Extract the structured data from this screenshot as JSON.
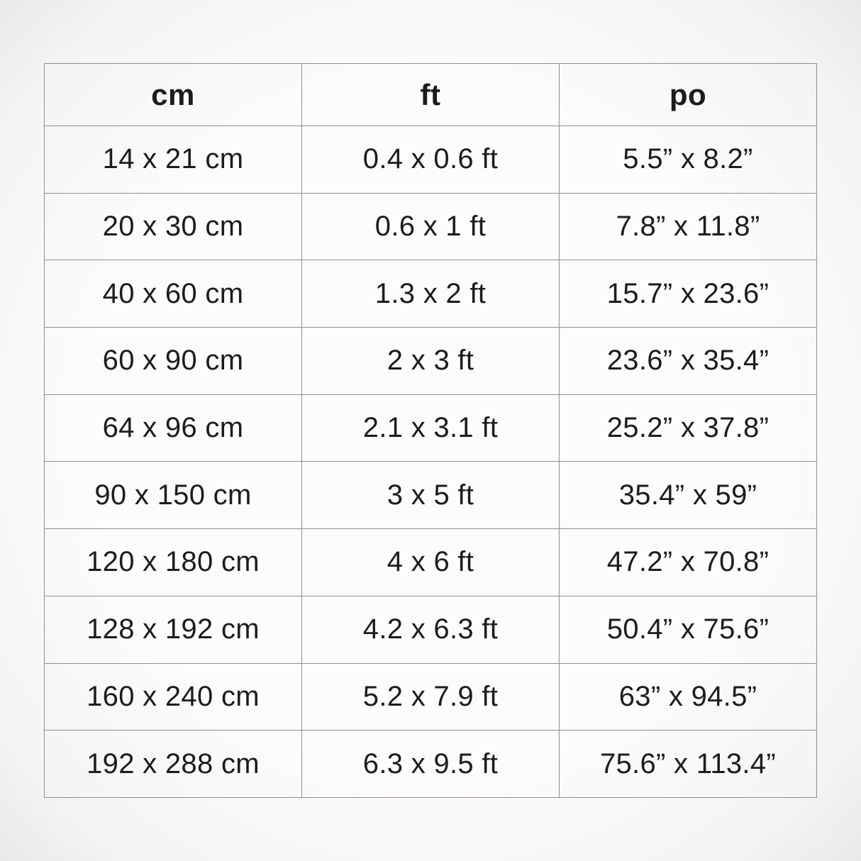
{
  "page": {
    "background_color": "#fcfbfb",
    "text_color": "#1c1c1c",
    "border_color": "#8f8f8f"
  },
  "chart_data": {
    "type": "table",
    "columns": [
      "cm",
      "ft",
      "po"
    ],
    "rows": [
      [
        "14 x 21 cm",
        "0.4 x 0.6 ft",
        "5.5” x 8.2”"
      ],
      [
        "20 x 30 cm",
        "0.6 x 1 ft",
        "7.8” x 11.8”"
      ],
      [
        "40 x 60 cm",
        "1.3 x 2 ft",
        "15.7” x 23.6”"
      ],
      [
        "60 x 90 cm",
        "2 x 3 ft",
        "23.6” x 35.4”"
      ],
      [
        "64 x 96 cm",
        "2.1 x 3.1 ft",
        "25.2” x 37.8”"
      ],
      [
        "90 x 150 cm",
        "3 x 5 ft",
        "35.4” x 59”"
      ],
      [
        "120 x 180 cm",
        "4 x 6 ft",
        "47.2” x 70.8”"
      ],
      [
        "128 x 192 cm",
        "4.2 x 6.3 ft",
        "50.4” x 75.6”"
      ],
      [
        "160 x 240 cm",
        "5.2 x 7.9 ft",
        "63” x 94.5”"
      ],
      [
        "192 x 288 cm",
        "6.3 x 9.5 ft",
        "75.6” x 113.4”"
      ]
    ]
  }
}
